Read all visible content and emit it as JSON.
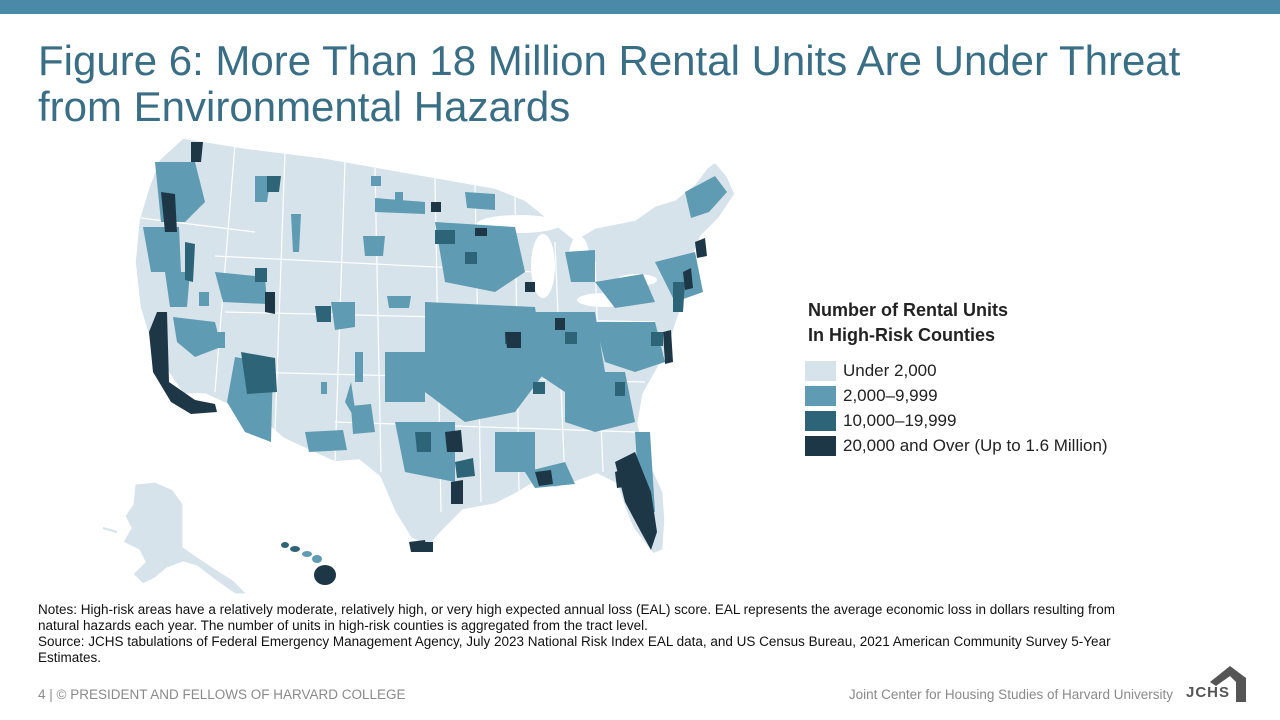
{
  "slide": {
    "title": "Figure 6: More Than 18 Million Rental Units Are Under Threat from Environmental Hazards",
    "legend": {
      "title_line1": "Number of Rental Units",
      "title_line2": "In High-Risk  Counties",
      "items": [
        {
          "label": "Under 2,000",
          "color": "#d6e3ea"
        },
        {
          "label": "2,000–9,999",
          "color": "#5f9bb3"
        },
        {
          "label": "10,000–19,999",
          "color": "#2e6478"
        },
        {
          "label": "20,000 and Over (Up to 1.6 Million)",
          "color": "#1e3747"
        }
      ]
    },
    "notes": {
      "line1": "Notes: High-risk areas have a relatively moderate, relatively high, or very high expected annual loss (EAL) score. EAL represents the average economic loss in dollars resulting from natural hazards each year. The number of units in high-risk counties is aggregated from the tract level.",
      "line2": "Source: JCHS tabulations of Federal Emergency Management Agency, July 2023 National Risk Index EAL data, and US Census Bureau, 2021 American Community Survey 5-Year Estimates."
    },
    "footer": {
      "left": "4 | © PRESIDENT AND FELLOWS OF HARVARD COLLEGE",
      "right": "Joint Center for Housing Studies of Harvard University",
      "logo": "JCHS"
    }
  }
}
